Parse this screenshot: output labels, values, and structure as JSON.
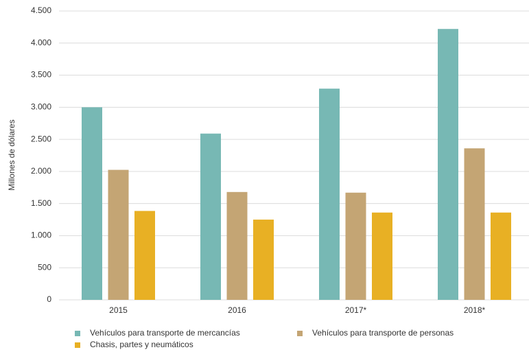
{
  "chart_data": {
    "type": "bar",
    "y_label": "Millones de dólares",
    "categories": [
      "2015",
      "2016",
      "2017*",
      "2018*"
    ],
    "series": [
      {
        "name": "Vehículos para transporte de mercancías",
        "color": "#77b8b4",
        "values": [
          3000,
          2590,
          3290,
          4220
        ]
      },
      {
        "name": "Vehículos para transporte de personas",
        "color": "#c4a574",
        "values": [
          2025,
          1680,
          1670,
          2360
        ]
      },
      {
        "name": "Chasis, partes y neumáticos",
        "color": "#e8b024",
        "values": [
          1385,
          1250,
          1360,
          1360
        ]
      }
    ],
    "ylim": [
      0,
      4500
    ],
    "yticks": [
      0,
      500,
      {
        "value": 1000,
        "label": "1.000"
      },
      {
        "value": 1500,
        "label": "1.500"
      },
      {
        "value": 2000,
        "label": "2.000"
      },
      {
        "value": 2500,
        "label": "2.500"
      },
      {
        "value": 3000,
        "label": "3.000"
      },
      {
        "value": 3500,
        "label": "3.500"
      },
      {
        "value": 4000,
        "label": "4.000"
      },
      {
        "value": 4500,
        "label": "4.500"
      }
    ],
    "grid": true
  }
}
